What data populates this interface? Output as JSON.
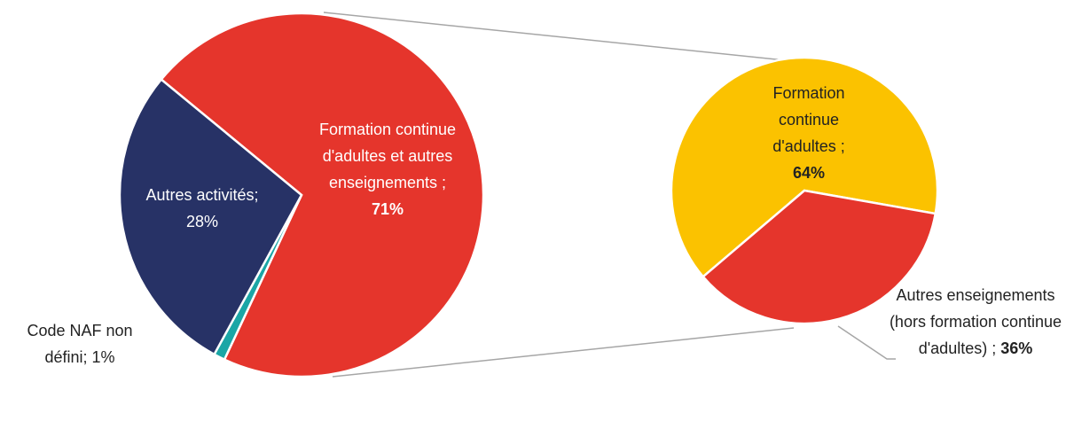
{
  "chart_data": [
    {
      "type": "pie",
      "categories": [
        "Formation continue d'adultes et autres enseignements ;",
        "Code NAF non défini;",
        "Autres activités;"
      ],
      "values": [
        71,
        1,
        28
      ],
      "value_labels": [
        "71%",
        "1%",
        "28%"
      ],
      "colors": [
        "#e5352c",
        "#1aa6a6",
        "#273266"
      ]
    },
    {
      "type": "pie",
      "categories": [
        "Formation continue d'adultes ;",
        "Autres enseignements (hors formation continue d'adultes) ;"
      ],
      "values": [
        64,
        36
      ],
      "value_labels": [
        "64%",
        "36%"
      ],
      "colors": [
        "#fbc200",
        "#e5352c"
      ]
    }
  ]
}
